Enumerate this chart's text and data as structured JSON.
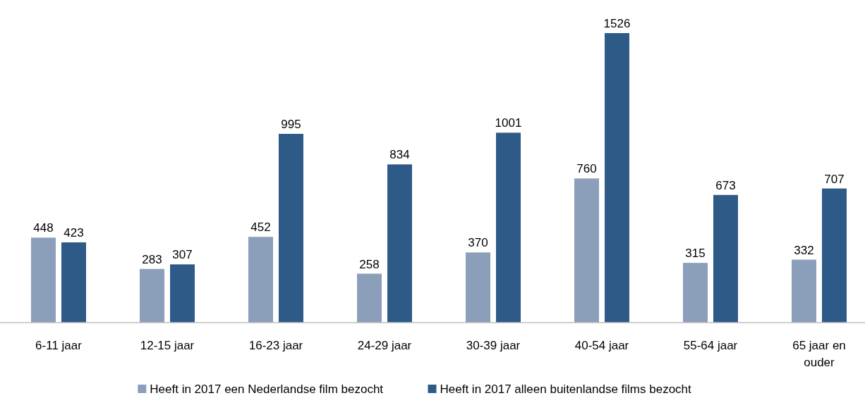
{
  "chart_data": {
    "type": "bar",
    "categories": [
      "6-11 jaar",
      "12-15 jaar",
      "16-23 jaar",
      "24-29 jaar",
      "30-39 jaar",
      "40-54 jaar",
      "55-64 jaar",
      "65 jaar en ouder"
    ],
    "series": [
      {
        "name": "Heeft in 2017 een Nederlandse film bezocht",
        "color": "#8c9fba",
        "values": [
          448,
          283,
          452,
          258,
          370,
          760,
          315,
          332
        ]
      },
      {
        "name": "Heeft in 2017 alleen buitenlandse films bezocht",
        "color": "#2e5a88",
        "values": [
          423,
          307,
          995,
          834,
          1001,
          1526,
          673,
          707
        ]
      }
    ],
    "data_labels": true,
    "legend": "bottom"
  }
}
